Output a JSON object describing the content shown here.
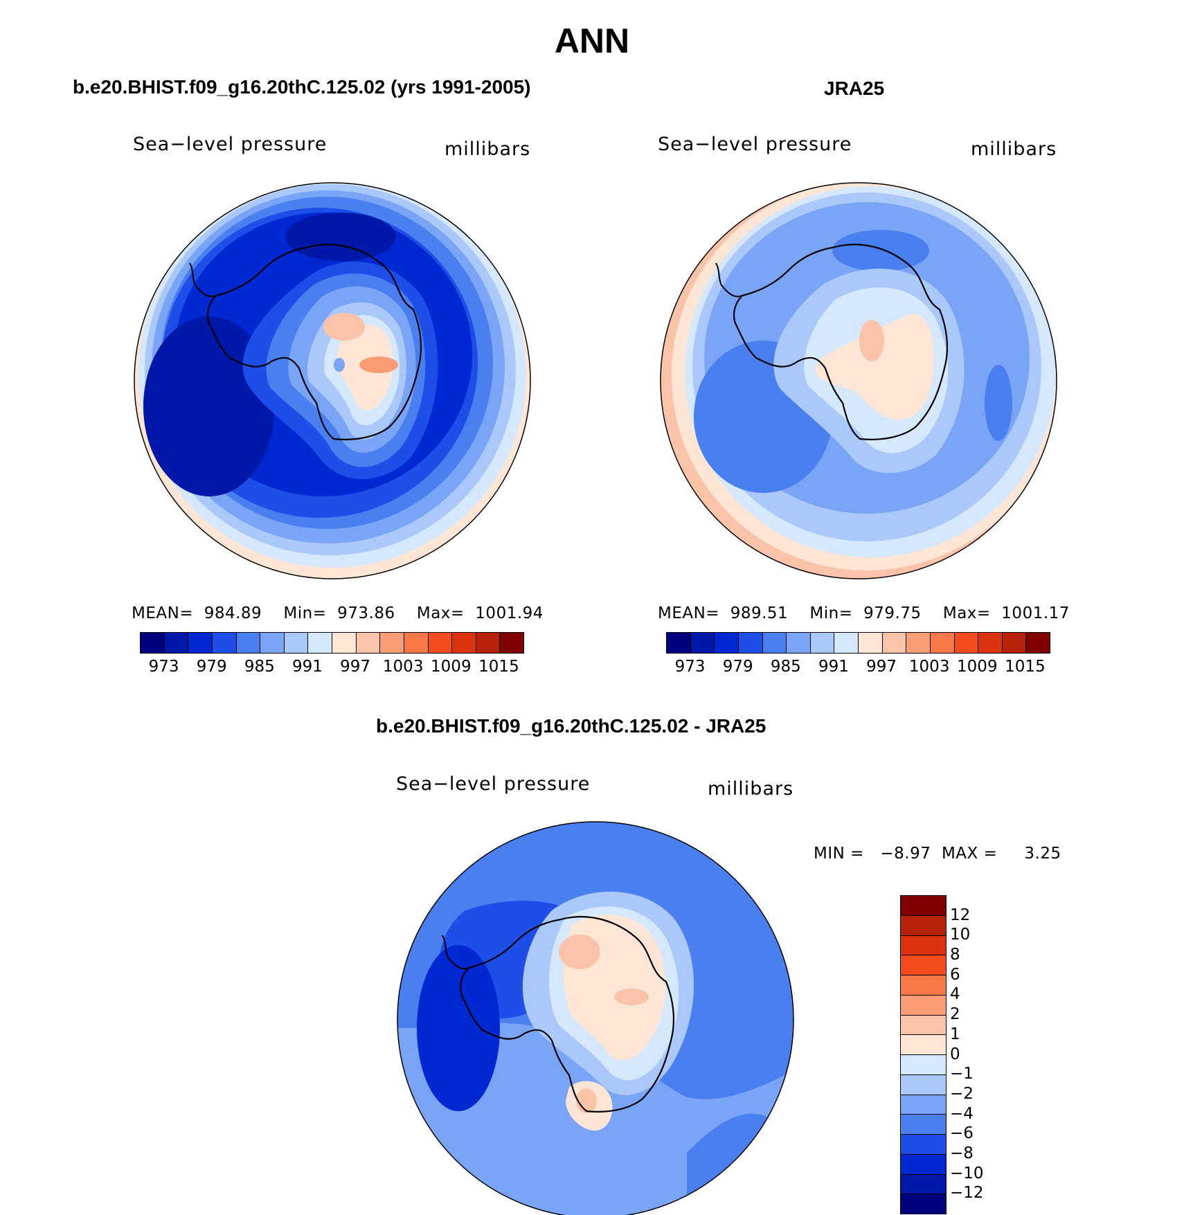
{
  "page": {
    "title": "ANN",
    "colors": [
      "#00007f",
      "#0018a8",
      "#0028d2",
      "#1e4ee8",
      "#4a7ff0",
      "#7aa5f6",
      "#aac8fa",
      "#d6e8fc",
      "#fde6d6",
      "#fbc4a8",
      "#fb9d74",
      "#f87848",
      "#f24c1f",
      "#dc3210",
      "#b62308",
      "#800000"
    ]
  },
  "panels": {
    "model": {
      "heading": "b.e20.BHIST.f09_g16.20thC.125.02 (yrs 1991-2005)",
      "field_label": "Sea−level pressure",
      "units_label": "millibars",
      "stats": "MEAN=  984.89    Min=  973.86    Max=  1001.94",
      "colorbar_ticks": [
        "973",
        "979",
        "985",
        "991",
        "997",
        "1003",
        "1009",
        "1015"
      ]
    },
    "obs": {
      "heading": "JRA25",
      "field_label": "Sea−level pressure",
      "units_label": "millibars",
      "stats": "MEAN=  989.51    Min=  979.75    Max=  1001.17",
      "colorbar_ticks": [
        "973",
        "979",
        "985",
        "991",
        "997",
        "1003",
        "1009",
        "1015"
      ]
    },
    "diff": {
      "heading": "b.e20.BHIST.f09_g16.20thC.125.02 - JRA25",
      "field_label": "Sea−level pressure",
      "units_label": "millibars",
      "stats": "MIN =   −8.97  MAX =     3.25",
      "colorbar_ticks": [
        "12",
        "10",
        "8",
        "6",
        "4",
        "2",
        "1",
        "0",
        "−1",
        "−2",
        "−4",
        "−6",
        "−8",
        "−10",
        "−12"
      ]
    }
  }
}
